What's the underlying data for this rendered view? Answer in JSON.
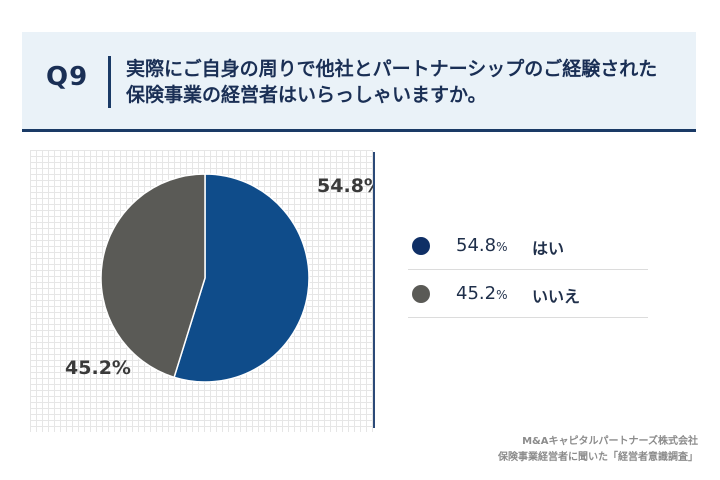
{
  "header": {
    "question_label": "Q9",
    "title_line1": "実際にご自身の周りで他社とパートナーシップのご経験された",
    "title_line2": "保険事業の経営者はいらっしゃいますか。"
  },
  "chart_data": {
    "type": "pie",
    "categories": [
      "はい",
      "いいえ"
    ],
    "values": [
      54.8,
      45.2
    ],
    "unit": "%",
    "data_labels": [
      "54.8%",
      "45.2%"
    ],
    "colors": [
      "#0f4c8a",
      "#5a5a56"
    ]
  },
  "legend": {
    "items": [
      {
        "pct": "54.8",
        "unit": "%",
        "label": "はい",
        "color": "#0f2f66"
      },
      {
        "pct": "45.2",
        "unit": "%",
        "label": "いいえ",
        "color": "#5a5a56"
      }
    ]
  },
  "footer": {
    "line1": "M&Aキャピタルパートナーズ株式会社",
    "line2": "保険事業経営者に聞いた「経営者意識調査」"
  }
}
